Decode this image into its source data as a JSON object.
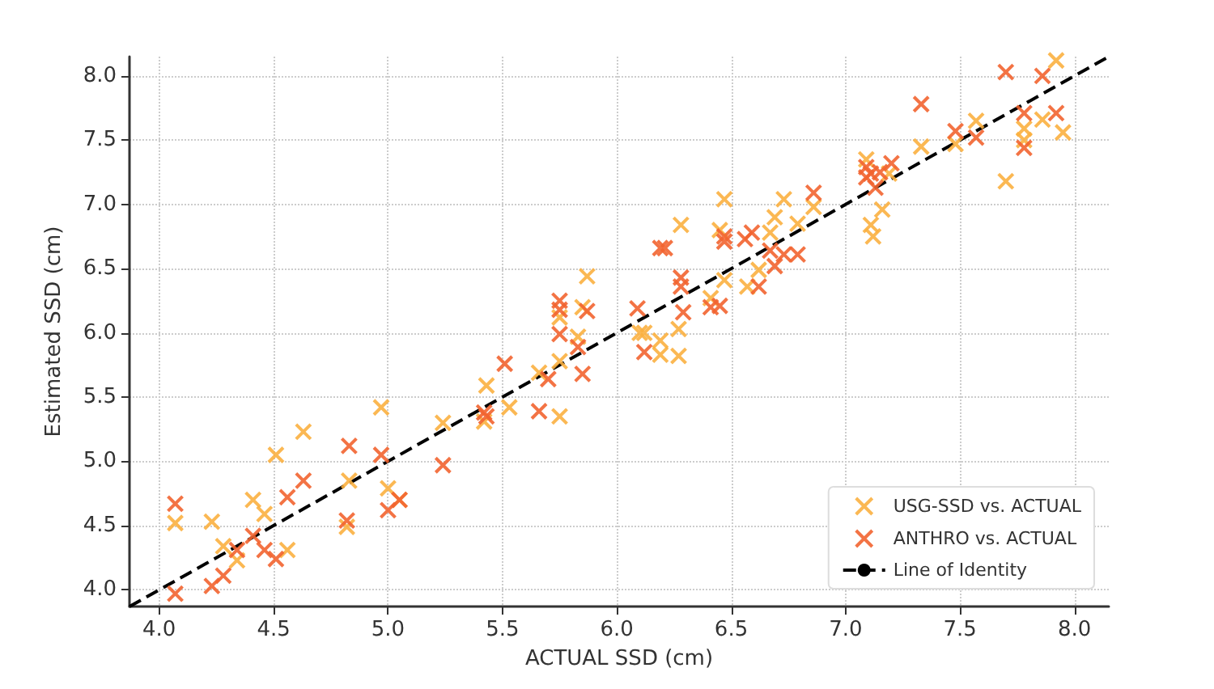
{
  "chart_data": {
    "type": "scatter",
    "xlabel": "ACTUAL SSD (cm)",
    "ylabel": "Estimated SSD (cm)",
    "xlim": [
      3.87,
      8.15
    ],
    "ylim": [
      3.87,
      8.15
    ],
    "xticks": [
      {
        "value": 4,
        "label": "4.0"
      },
      4.5,
      {
        "value": 5,
        "label": "5.0"
      },
      5.5,
      {
        "value": 6,
        "label": "6.0"
      },
      6.5,
      {
        "value": 7,
        "label": "7.0"
      },
      7.5,
      {
        "value": 8,
        "label": "8.0"
      }
    ],
    "yticks": [
      {
        "value": 4,
        "label": "4.0"
      },
      4.5,
      {
        "value": 5,
        "label": "5.0"
      },
      5.5,
      {
        "value": 6,
        "label": "6.0"
      },
      6.5,
      {
        "value": 7,
        "label": "7.0"
      },
      7.5,
      {
        "value": 8,
        "label": "8.0"
      }
    ],
    "grid": true,
    "legend": "bottom right",
    "marker": "cross",
    "series": [
      {
        "name": "USG-SSD vs. ACTUAL",
        "color": "#fbb040",
        "x": [
          4.07,
          4.23,
          4.28,
          4.34,
          4.41,
          4.46,
          4.51,
          4.56,
          4.63,
          4.82,
          4.83,
          4.97,
          5.0,
          5.05,
          5.24,
          5.43,
          5.42,
          5.53,
          5.66,
          5.75,
          5.75,
          5.75,
          5.83,
          5.85,
          5.87,
          6.1,
          6.12,
          6.19,
          6.19,
          6.27,
          6.27,
          6.28,
          6.41,
          6.47,
          6.45,
          6.47,
          6.57,
          6.62,
          6.67,
          6.69,
          6.73,
          6.79,
          6.86,
          7.09,
          7.11,
          7.12,
          7.16,
          7.19,
          7.33,
          7.48,
          7.57,
          7.7,
          7.78,
          7.78,
          7.86,
          7.92,
          7.95
        ],
        "values": [
          4.52,
          4.53,
          4.34,
          4.23,
          4.7,
          4.59,
          5.05,
          4.31,
          5.23,
          4.49,
          4.85,
          5.42,
          4.79,
          4.7,
          5.3,
          5.59,
          5.31,
          5.42,
          5.69,
          5.35,
          5.78,
          6.12,
          5.97,
          6.2,
          6.44,
          6.0,
          6.0,
          5.94,
          5.83,
          6.03,
          5.82,
          6.84,
          6.27,
          7.04,
          6.8,
          6.41,
          6.36,
          6.49,
          6.78,
          6.9,
          7.04,
          6.85,
          6.98,
          7.35,
          6.84,
          6.75,
          6.96,
          7.24,
          7.45,
          7.47,
          7.65,
          7.18,
          7.59,
          7.5,
          7.66,
          8.12,
          7.56
        ]
      },
      {
        "name": "ANTHRO vs. ACTUAL",
        "color": "#f26430",
        "x": [
          4.07,
          4.07,
          4.23,
          4.28,
          4.34,
          4.41,
          4.46,
          4.51,
          4.56,
          4.63,
          4.83,
          4.82,
          4.97,
          5.0,
          5.05,
          5.24,
          5.42,
          5.43,
          5.51,
          5.66,
          5.7,
          5.75,
          5.75,
          5.75,
          5.83,
          5.87,
          5.85,
          6.09,
          6.12,
          6.19,
          6.21,
          6.28,
          6.28,
          6.29,
          6.41,
          6.45,
          6.47,
          6.47,
          6.56,
          6.59,
          6.62,
          6.67,
          6.69,
          6.73,
          6.79,
          6.86,
          7.09,
          7.09,
          7.11,
          7.15,
          7.2,
          7.13,
          7.33,
          7.48,
          7.57,
          7.7,
          7.78,
          7.78,
          7.86,
          7.92
        ],
        "values": [
          4.67,
          3.97,
          4.03,
          4.11,
          4.31,
          4.42,
          4.31,
          4.24,
          4.72,
          4.85,
          5.12,
          4.54,
          5.05,
          4.62,
          4.7,
          4.97,
          5.38,
          5.35,
          5.76,
          5.39,
          5.64,
          6.25,
          6.18,
          5.99,
          5.89,
          6.17,
          5.68,
          6.19,
          5.85,
          6.66,
          6.66,
          6.43,
          6.36,
          6.16,
          6.2,
          6.21,
          6.75,
          6.71,
          6.73,
          6.78,
          6.36,
          6.64,
          6.52,
          6.61,
          6.61,
          7.09,
          7.29,
          7.21,
          7.24,
          7.25,
          7.32,
          7.13,
          7.78,
          7.57,
          7.52,
          8.03,
          7.71,
          7.44,
          8.0,
          7.71
        ]
      },
      {
        "name": "Line of Identity",
        "color": "#000000",
        "type": "line",
        "line_style": "dashed",
        "marker": "none",
        "x": [
          3.87,
          8.15
        ],
        "values": [
          3.87,
          8.15
        ]
      }
    ]
  }
}
